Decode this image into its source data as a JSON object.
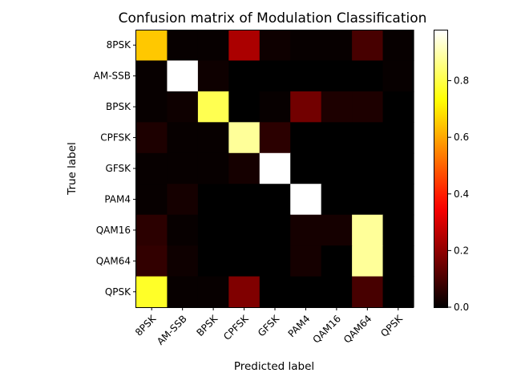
{
  "chart_data": {
    "type": "heatmap",
    "title": "Confusion matrix of Modulation Classification",
    "xlabel": "Predicted label",
    "ylabel": "True label",
    "x_categories": [
      "8PSK",
      "AM-SSB",
      "BPSK",
      "CPFSK",
      "GFSK",
      "PAM4",
      "QAM16",
      "QAM64",
      "QPSK"
    ],
    "y_categories": [
      "8PSK",
      "AM-SSB",
      "BPSK",
      "CPFSK",
      "GFSK",
      "PAM4",
      "QAM16",
      "QAM64",
      "QPSK"
    ],
    "values": [
      [
        0.65,
        0.01,
        0.01,
        0.24,
        0.02,
        0.01,
        0.01,
        0.1,
        0.01
      ],
      [
        0.01,
        0.98,
        0.02,
        0.0,
        0.0,
        0.0,
        0.0,
        0.0,
        0.01
      ],
      [
        0.01,
        0.02,
        0.81,
        0.0,
        0.01,
        0.16,
        0.04,
        0.04,
        0.0
      ],
      [
        0.04,
        0.01,
        0.01,
        0.88,
        0.06,
        0.0,
        0.0,
        0.0,
        0.0
      ],
      [
        0.01,
        0.01,
        0.01,
        0.03,
        0.98,
        0.0,
        0.0,
        0.0,
        0.0
      ],
      [
        0.01,
        0.03,
        0.0,
        0.0,
        0.0,
        0.98,
        0.0,
        0.0,
        0.0
      ],
      [
        0.06,
        0.01,
        0.0,
        0.0,
        0.0,
        0.03,
        0.03,
        0.88,
        0.0
      ],
      [
        0.07,
        0.02,
        0.0,
        0.0,
        0.0,
        0.03,
        0.0,
        0.88,
        0.0
      ],
      [
        0.77,
        0.01,
        0.01,
        0.18,
        0.0,
        0.0,
        0.0,
        0.1,
        0.0
      ]
    ],
    "colormap": "hot",
    "colorbar": {
      "range": [
        0.0,
        0.98
      ],
      "ticks": [
        0.0,
        0.2,
        0.4,
        0.6,
        0.8
      ],
      "tick_labels": [
        "0.0",
        "0.2",
        "0.4",
        "0.6",
        "0.8"
      ]
    },
    "grid": false
  }
}
